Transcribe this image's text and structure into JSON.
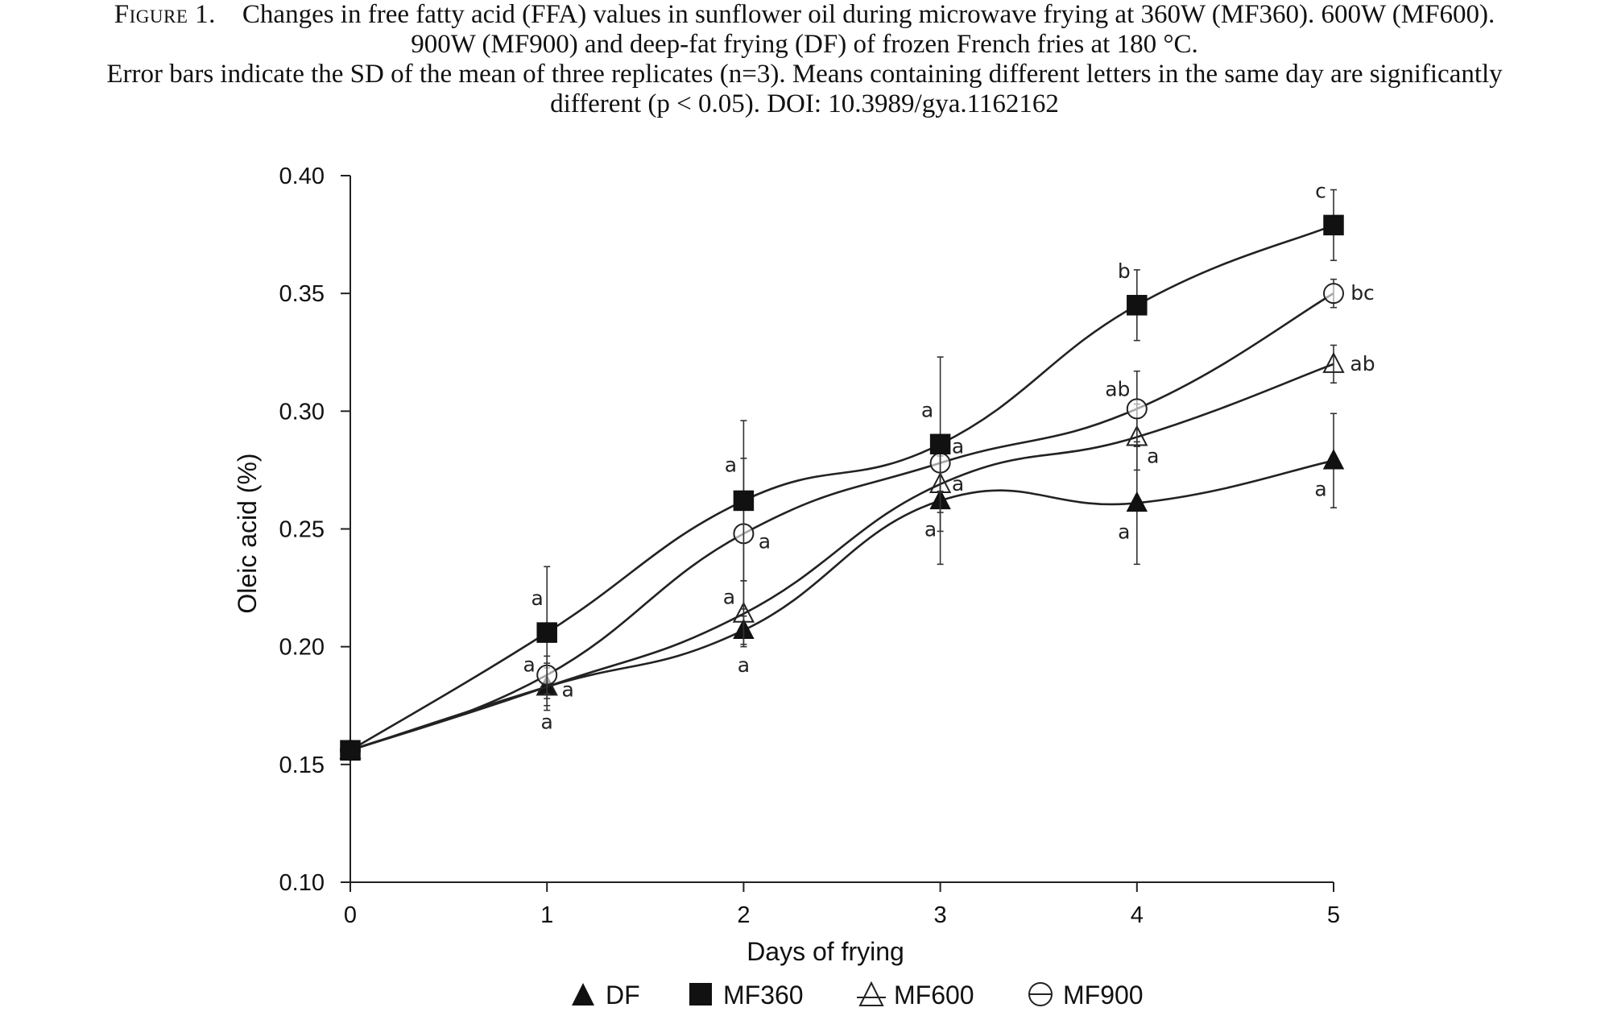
{
  "caption": {
    "label": "Figure 1.",
    "line1": "Changes in free fatty acid (FFA) values in sunflower oil during microwave frying at 360W (MF360). 600W (MF600).",
    "line2": "900W (MF900) and deep-fat frying (DF) of frozen French fries at 180 °C.",
    "line3": "Error bars indicate the SD of the mean of three replicates (n=3). Means containing different letters in the same day are significantly",
    "line4": "different (p < 0.05). DOI: 10.3989/gya.1162162"
  },
  "chart_data": {
    "type": "line",
    "xlabel": "Days of frying",
    "ylabel": "Oleic acid (%)",
    "x": [
      0,
      1,
      2,
      3,
      4,
      5
    ],
    "xlim": [
      0,
      5
    ],
    "ylim": [
      0.1,
      0.4
    ],
    "x_ticks": [
      "0",
      "1",
      "2",
      "3",
      "4",
      "5"
    ],
    "y_ticks": [
      "0.10",
      "0.15",
      "0.20",
      "0.25",
      "0.30",
      "0.35",
      "0.40"
    ],
    "grid": false,
    "legend_position": "bottom",
    "series": [
      {
        "name": "DF",
        "marker": "filled-triangle",
        "values": [
          0.156,
          0.183,
          0.207,
          0.262,
          0.261,
          0.279
        ],
        "error": [
          0.004,
          0.01,
          0.006,
          0.027,
          0.026,
          0.02
        ],
        "letters": [
          "",
          "a",
          "a",
          "a",
          "a",
          "a"
        ]
      },
      {
        "name": "MF360",
        "marker": "filled-square",
        "values": [
          0.156,
          0.206,
          0.262,
          0.286,
          0.345,
          0.379
        ],
        "error": [
          0.004,
          0.028,
          0.034,
          0.037,
          0.015,
          0.015
        ],
        "letters": [
          "",
          "a",
          "a",
          "a",
          "b",
          "c"
        ]
      },
      {
        "name": "MF600",
        "marker": "open-triangle",
        "values": [
          0.156,
          0.183,
          0.214,
          0.269,
          0.289,
          0.32
        ],
        "error": [
          0.004,
          0.008,
          0.014,
          0.012,
          0.014,
          0.008
        ],
        "letters": [
          "",
          "a",
          "a",
          "a",
          "a",
          "ab"
        ]
      },
      {
        "name": "MF900",
        "marker": "open-circle",
        "values": [
          0.156,
          0.188,
          0.248,
          0.278,
          0.301,
          0.35
        ],
        "error": [
          0.004,
          0.008,
          0.032,
          0.012,
          0.016,
          0.006
        ],
        "letters": [
          "",
          "a",
          "a",
          "a",
          "ab",
          "bc"
        ]
      }
    ]
  }
}
